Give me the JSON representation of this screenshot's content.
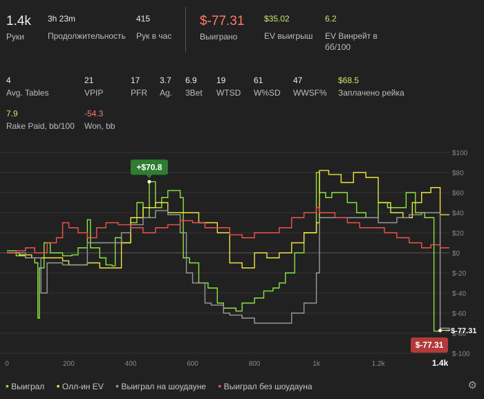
{
  "summary": [
    {
      "value": "1.4k",
      "label": "Руки",
      "size": "big",
      "color": "default"
    },
    {
      "value": "3h 23m",
      "label": "Продолжительность",
      "size": "mid",
      "color": "default"
    },
    {
      "value": "415",
      "label": "Рук в час",
      "size": "mid",
      "color": "default"
    },
    {
      "value": "$-77.31",
      "label": "Выиграно",
      "size": "big",
      "color": "red"
    },
    {
      "value": "$35.02",
      "label": "EV выигрыш",
      "size": "mid",
      "color": "green"
    },
    {
      "value": "6.2",
      "label": "EV Винрейт в",
      "label2": "бб/100",
      "size": "mid",
      "color": "green"
    }
  ],
  "stats_row1": [
    {
      "value": "4",
      "label": "Avg. Tables",
      "color": "default"
    },
    {
      "value": "21",
      "label": "VPIP",
      "color": "default"
    },
    {
      "value": "17",
      "label": "PFR",
      "color": "default"
    },
    {
      "value": "3.7",
      "label": "Ag.",
      "color": "default"
    },
    {
      "value": "6.9",
      "label": "3Bet",
      "color": "default"
    },
    {
      "value": "19",
      "label": "WTSD",
      "color": "default"
    },
    {
      "value": "61",
      "label": "W%SD",
      "color": "default"
    },
    {
      "value": "47",
      "label": "WWSF%",
      "color": "default"
    },
    {
      "value": "$68.5",
      "label": "Заплачено рейка",
      "color": "green"
    }
  ],
  "stats_row2": [
    {
      "value": "7.9",
      "label": "Rake Paid, bb/100",
      "color": "green"
    },
    {
      "value": "-54.3",
      "label": "Won, bb",
      "color": "red"
    }
  ],
  "colors": {
    "won": "#8ee53f",
    "allin_ev": "#f0e243",
    "showdown": "#9a9a9a",
    "non_showdown": "#ef5350"
  },
  "chart_data": {
    "type": "line",
    "x_ticks": [
      "0",
      "200",
      "400",
      "600",
      "800",
      "1k",
      "1.2k",
      "1.4k"
    ],
    "x_tick_values": [
      0,
      200,
      400,
      600,
      800,
      1000,
      1200,
      1400
    ],
    "y_ticks": [
      "$100",
      "$80",
      "$60",
      "$40",
      "$20",
      "$0",
      "$-20",
      "$-40",
      "$-60",
      "$-80",
      "$-100"
    ],
    "y_tick_values": [
      100,
      80,
      60,
      40,
      20,
      0,
      -20,
      -40,
      -60,
      -80,
      -100
    ],
    "xlim": [
      0,
      1430
    ],
    "ylim": [
      -100,
      100
    ],
    "legend": [
      "Выиграл",
      "Олл-ин EV",
      "Выиграл на шоудауне",
      "Выиграл без шоудауна"
    ],
    "annotations": [
      {
        "text": "+$70.8",
        "x": 460,
        "y": 70.8,
        "color": "#2e7d32"
      },
      {
        "text": "$-77.31",
        "x": 1400,
        "y": -77.31,
        "color": "#b23a3a"
      }
    ],
    "end_label": "$-77.31",
    "series": [
      {
        "name": "Выиграл",
        "color": "#8ee53f",
        "x": [
          0,
          30,
          60,
          90,
          100,
          105,
          120,
          140,
          180,
          210,
          230,
          260,
          270,
          300,
          320,
          340,
          350,
          370,
          400,
          420,
          440,
          460,
          480,
          500,
          520,
          560,
          570,
          590,
          620,
          650,
          680,
          700,
          720,
          740,
          760,
          800,
          830,
          860,
          880,
          900,
          930,
          960,
          1000,
          1010,
          1030,
          1050,
          1100,
          1130,
          1160,
          1200,
          1230,
          1260,
          1290,
          1320,
          1350,
          1380,
          1400,
          1410,
          1430
        ],
        "y": [
          2,
          -3,
          -5,
          -10,
          -65,
          -15,
          10,
          0,
          -3,
          -2,
          5,
          33,
          5,
          -5,
          -12,
          -13,
          15,
          10,
          30,
          50,
          35,
          70.8,
          45,
          55,
          62,
          55,
          -5,
          -10,
          -30,
          -35,
          -50,
          -55,
          -55,
          -58,
          -50,
          -45,
          -38,
          -35,
          -30,
          -20,
          0,
          20,
          80,
          60,
          55,
          60,
          50,
          40,
          35,
          50,
          45,
          45,
          60,
          40,
          35,
          -78,
          -77,
          -77.31,
          -77.31
        ]
      },
      {
        "name": "Олл-ин EV",
        "color": "#f0e243",
        "x": [
          0,
          40,
          80,
          120,
          180,
          200,
          260,
          300,
          340,
          370,
          400,
          440,
          480,
          520,
          560,
          620,
          680,
          720,
          760,
          800,
          840,
          880,
          920,
          960,
          1000,
          1010,
          1040,
          1080,
          1120,
          1160,
          1200,
          1240,
          1280,
          1310,
          1340,
          1370,
          1400,
          1430
        ],
        "y": [
          0,
          -2,
          -5,
          -5,
          -8,
          -12,
          -10,
          -15,
          -15,
          10,
          35,
          45,
          50,
          40,
          40,
          30,
          20,
          -10,
          -15,
          0,
          -5,
          0,
          10,
          20,
          30,
          82,
          78,
          70,
          80,
          75,
          50,
          40,
          35,
          50,
          60,
          65,
          38,
          38
        ]
      },
      {
        "name": "Выиграл на шоудауне",
        "color": "#9a9a9a",
        "x": [
          0,
          60,
          110,
          130,
          180,
          200,
          260,
          300,
          340,
          370,
          400,
          440,
          480,
          520,
          560,
          580,
          600,
          620,
          640,
          660,
          700,
          720,
          760,
          800,
          840,
          880,
          920,
          960,
          1000,
          1010,
          1100,
          1160,
          1200,
          1260,
          1300,
          1340,
          1370,
          1400,
          1430
        ],
        "y": [
          0,
          -5,
          -40,
          -10,
          -12,
          -12,
          10,
          10,
          10,
          20,
          28,
          35,
          42,
          38,
          20,
          -20,
          -30,
          -30,
          -50,
          -52,
          -60,
          -62,
          -65,
          -70,
          -70,
          -70,
          -60,
          -50,
          -20,
          35,
          35,
          35,
          30,
          35,
          38,
          40,
          40,
          -75,
          -78
        ]
      },
      {
        "name": "Выиграл без шоудауна",
        "color": "#ef5350",
        "x": [
          0,
          30,
          60,
          90,
          130,
          160,
          180,
          200,
          230,
          260,
          290,
          320,
          360,
          400,
          440,
          480,
          520,
          560,
          600,
          640,
          680,
          720,
          760,
          800,
          840,
          880,
          920,
          960,
          1000,
          1010,
          1060,
          1100,
          1140,
          1180,
          1220,
          1260,
          1300,
          1340,
          1370,
          1400,
          1430
        ],
        "y": [
          0,
          2,
          5,
          0,
          10,
          15,
          30,
          25,
          20,
          15,
          25,
          30,
          28,
          25,
          20,
          25,
          28,
          32,
          30,
          25,
          25,
          18,
          15,
          20,
          20,
          25,
          35,
          40,
          45,
          40,
          35,
          30,
          25,
          25,
          20,
          15,
          10,
          5,
          8,
          5,
          5
        ]
      }
    ]
  }
}
